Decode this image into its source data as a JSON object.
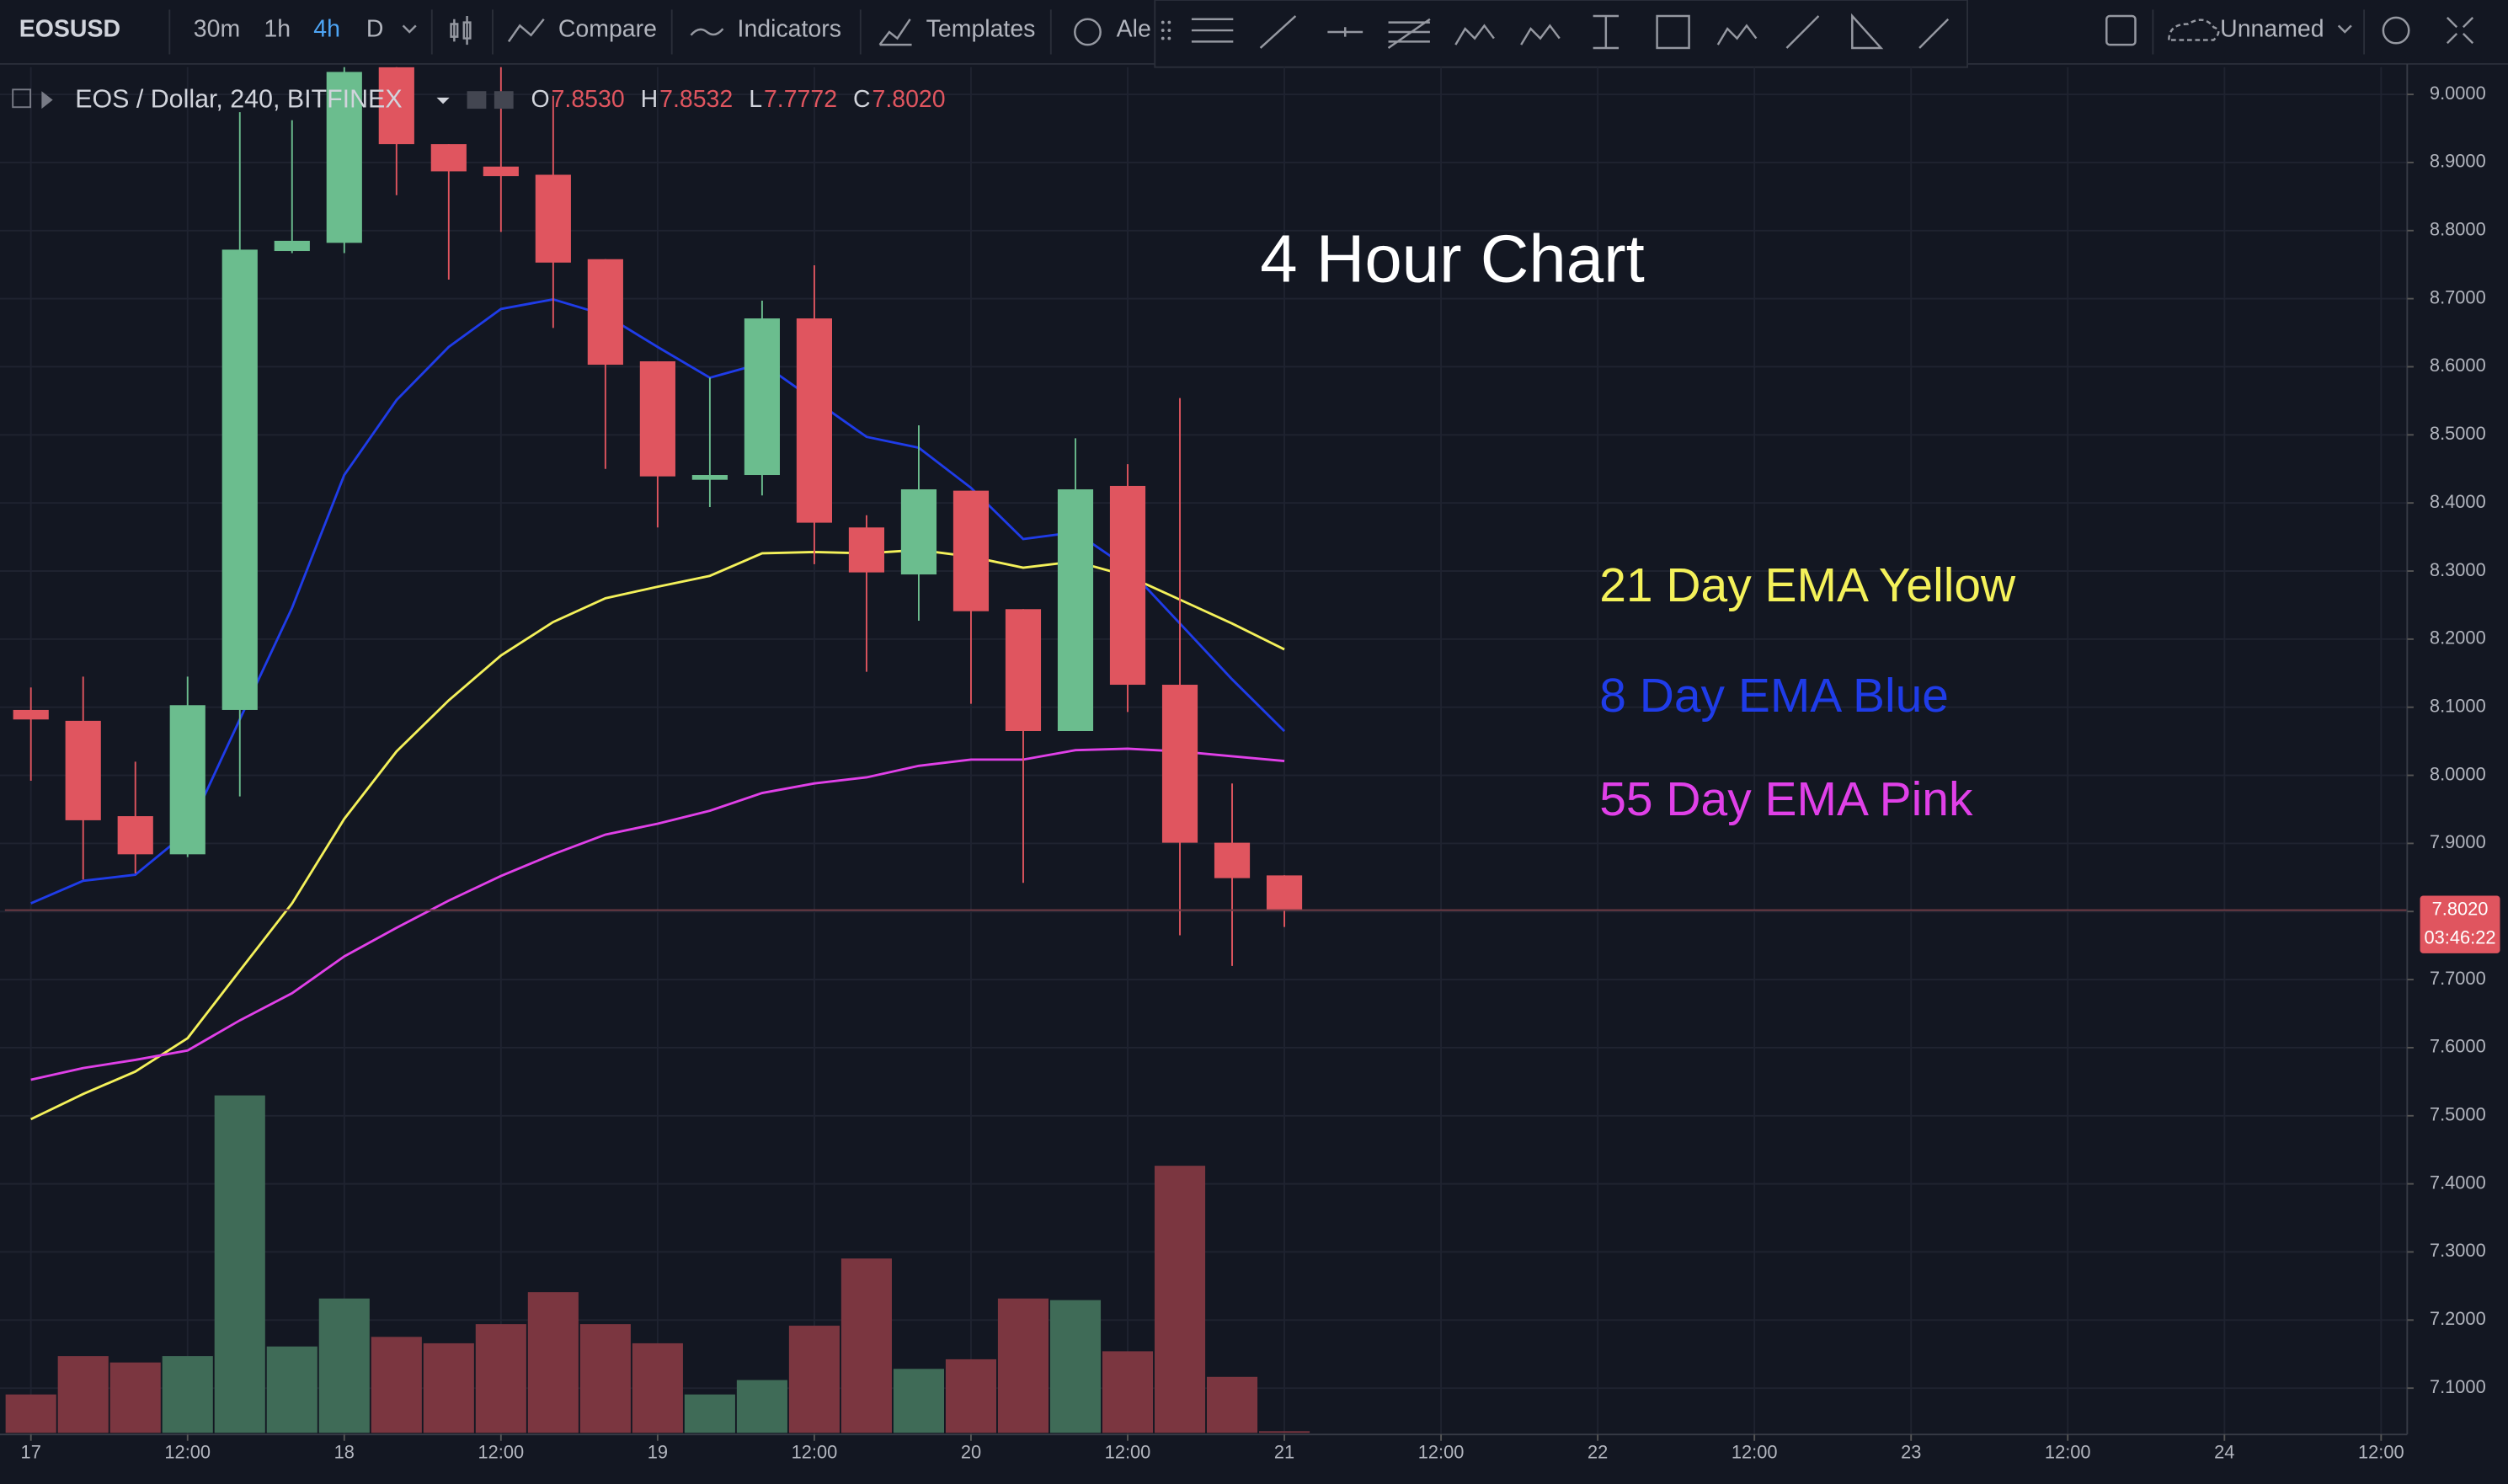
{
  "toolbar": {
    "symbol": "EOSUSD",
    "intervals": [
      "30m",
      "1h",
      "4h",
      "D"
    ],
    "compare": "Compare",
    "indicators": "Indicators",
    "templates": "Templates",
    "alert": "Ale",
    "layout": "Unnamed"
  },
  "chart_data": {
    "type": "candlestick",
    "title": "EOS / Dollar, 240, BITFINEX",
    "readout": [
      {
        "label": "O",
        "value": "7.8530"
      },
      {
        "label": "H",
        "value": "7.8532"
      },
      {
        "label": "L",
        "value": "7.7772"
      },
      {
        "label": "C",
        "value": "7.8020"
      }
    ],
    "annotation": "4 Hour Chart",
    "up_color": "#6bbd8e",
    "down_color": "#e0555f",
    "volume_up_color": "#3f6b57",
    "volume_down_color": "#7b3640",
    "x": [
      0,
      4,
      8,
      12,
      16,
      20,
      24,
      28,
      32,
      36,
      40,
      44,
      48,
      52,
      56,
      60,
      64,
      68,
      72,
      76,
      80,
      84,
      88,
      92,
      96
    ],
    "open": [
      8.096,
      8.08,
      7.94,
      7.884,
      8.096,
      8.77,
      8.782,
      9.04,
      8.927,
      8.894,
      8.882,
      8.758,
      8.608,
      8.434,
      8.441,
      8.671,
      8.364,
      8.295,
      8.418,
      8.244,
      8.065,
      8.425,
      8.133,
      7.901,
      7.853
    ],
    "high": [
      8.129,
      8.145,
      8.02,
      8.145,
      8.974,
      8.962,
      9.08,
      9.1,
      8.927,
      9.05,
      8.998,
      8.758,
      8.608,
      8.584,
      8.697,
      8.749,
      8.382,
      8.514,
      8.418,
      8.244,
      8.495,
      8.457,
      8.554,
      7.988,
      7.8532
    ],
    "low": [
      7.992,
      7.847,
      7.856,
      7.88,
      7.969,
      8.767,
      8.767,
      8.852,
      8.728,
      8.798,
      8.657,
      8.45,
      8.364,
      8.394,
      8.411,
      8.31,
      8.152,
      8.227,
      8.105,
      7.842,
      8.065,
      8.093,
      7.765,
      7.72,
      7.7772
    ],
    "close": [
      8.082,
      7.934,
      7.884,
      8.103,
      8.772,
      8.785,
      9.033,
      8.927,
      8.887,
      8.88,
      8.753,
      8.603,
      8.439,
      8.441,
      8.671,
      8.371,
      8.298,
      8.42,
      8.241,
      8.065,
      8.42,
      8.133,
      7.901,
      7.849,
      7.802
    ],
    "volume": [
      24,
      48,
      44,
      48,
      211,
      54,
      84,
      60,
      56,
      68,
      88,
      68,
      56,
      24,
      33,
      67,
      109,
      40,
      46,
      84,
      83,
      51,
      167,
      35,
      1
    ],
    "series": [
      {
        "name": "21 Day EMA Yellow",
        "color": "#f4f15a",
        "values": [
          7.495,
          7.532,
          7.565,
          7.614,
          7.713,
          7.812,
          7.936,
          8.035,
          8.11,
          8.176,
          8.225,
          8.26,
          8.277,
          8.293,
          8.326,
          8.328,
          8.326,
          8.331,
          8.321,
          8.305,
          8.314,
          8.293,
          8.258,
          8.223,
          8.185
        ]
      },
      {
        "name": "8 Day EMA Blue",
        "color": "#1f3ce8",
        "values": [
          7.812,
          7.845,
          7.854,
          7.917,
          8.082,
          8.246,
          8.441,
          8.551,
          8.629,
          8.685,
          8.699,
          8.676,
          8.629,
          8.584,
          8.605,
          8.551,
          8.497,
          8.481,
          8.422,
          8.347,
          8.357,
          8.305,
          8.223,
          8.141,
          8.065
        ]
      },
      {
        "name": "55 Day EMA Pink",
        "color": "#e040e8",
        "values": [
          7.553,
          7.57,
          7.582,
          7.596,
          7.64,
          7.68,
          7.734,
          7.776,
          7.816,
          7.852,
          7.884,
          7.913,
          7.929,
          7.948,
          7.974,
          7.988,
          7.997,
          8.014,
          8.023,
          8.023,
          8.037,
          8.039,
          8.035,
          8.028,
          8.021
        ]
      }
    ],
    "last_price": {
      "value": 7.802,
      "label": "7.8020",
      "countdown": "03:46:22"
    },
    "xlim": [
      -2,
      182
    ],
    "xticks": [
      {
        "value": 0,
        "label": "17"
      },
      {
        "value": 12,
        "label": "12:00"
      },
      {
        "value": 24,
        "label": "18"
      },
      {
        "value": 36,
        "label": "12:00"
      },
      {
        "value": 48,
        "label": "19"
      },
      {
        "value": 60,
        "label": "12:00"
      },
      {
        "value": 72,
        "label": "20"
      },
      {
        "value": 84,
        "label": "12:00"
      },
      {
        "value": 96,
        "label": "21"
      },
      {
        "value": 108,
        "label": "12:00"
      },
      {
        "value": 120,
        "label": "22"
      },
      {
        "value": 132,
        "label": "12:00"
      },
      {
        "value": 144,
        "label": "23"
      },
      {
        "value": 156,
        "label": "12:00"
      },
      {
        "value": 168,
        "label": "24"
      },
      {
        "value": 180,
        "label": "12:00"
      }
    ],
    "ylim": [
      7.032,
      9.04
    ],
    "yticks": [
      {
        "value": 9,
        "label": "9.0000"
      },
      {
        "value": 8.9,
        "label": "8.9000"
      },
      {
        "value": 8.8,
        "label": "8.8000"
      },
      {
        "value": 8.7,
        "label": "8.7000"
      },
      {
        "value": 8.6,
        "label": "8.6000"
      },
      {
        "value": 8.5,
        "label": "8.5000"
      },
      {
        "value": 8.4,
        "label": "8.4000"
      },
      {
        "value": 8.3,
        "label": "8.3000"
      },
      {
        "value": 8.2,
        "label": "8.2000"
      },
      {
        "value": 8.1,
        "label": "8.1000"
      },
      {
        "value": 8,
        "label": "8.0000"
      },
      {
        "value": 7.9,
        "label": "7.9000"
      },
      {
        "value": 7.8,
        "label": "7.8000"
      },
      {
        "value": 7.7,
        "label": "7.7000"
      },
      {
        "value": 7.6,
        "label": "7.6000"
      },
      {
        "value": 7.5,
        "label": "7.5000"
      },
      {
        "value": 7.4,
        "label": "7.4000"
      },
      {
        "value": 7.3,
        "label": "7.3000"
      },
      {
        "value": 7.2,
        "label": "7.2000"
      },
      {
        "value": 7.1,
        "label": "7.1000"
      }
    ],
    "grid": true
  }
}
